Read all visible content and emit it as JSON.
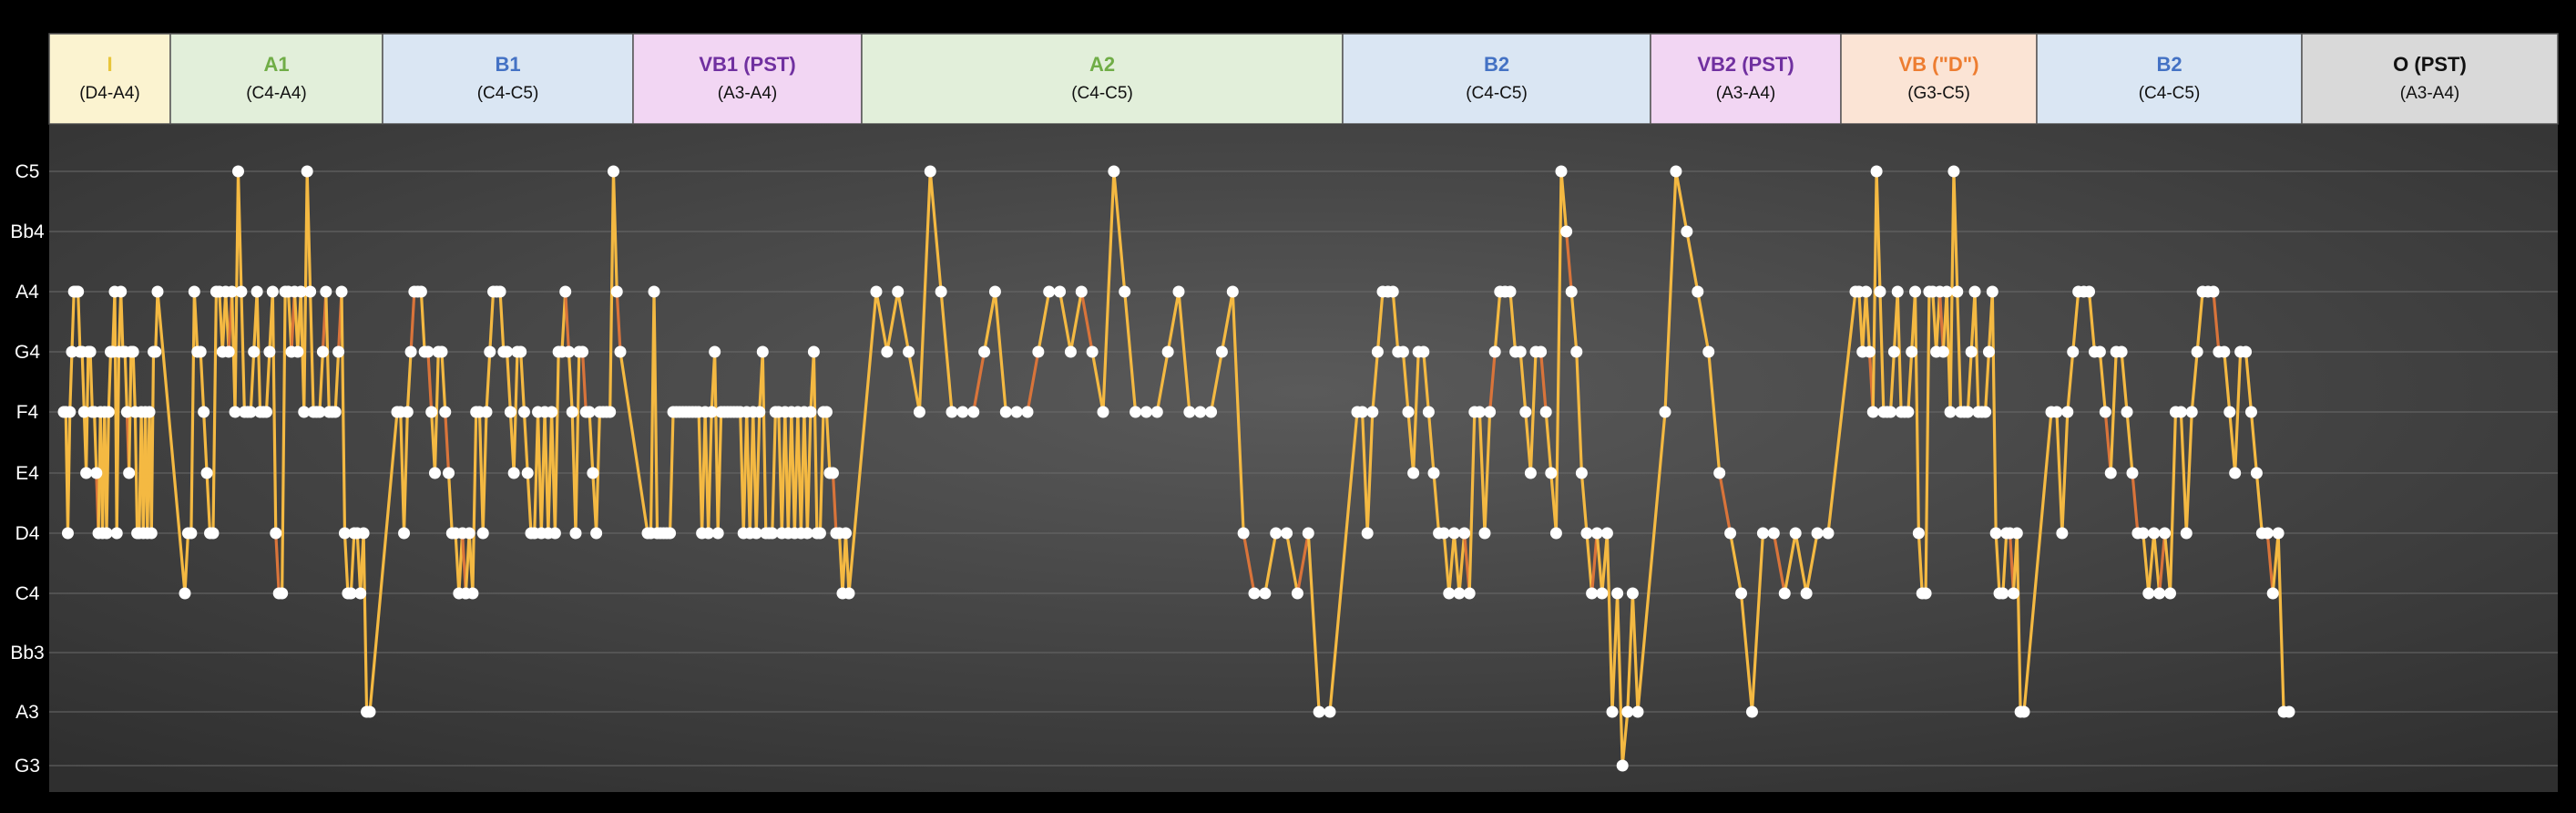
{
  "chart_data": {
    "type": "line",
    "title": "",
    "xlabel": "",
    "ylabel": "",
    "y_ticks": [
      "G3",
      "A3",
      "Bb3",
      "C4",
      "D4",
      "E4",
      "F4",
      "G4",
      "A4",
      "Bb4",
      "C5"
    ],
    "y_grid": true,
    "sections": [
      {
        "label": "I",
        "range": "(D4-A4)",
        "color": "#e8c53a",
        "bg": "#fbf3d0"
      },
      {
        "label": "A1",
        "range": "(C4-A4)",
        "color": "#70ad47",
        "bg": "#e2efda"
      },
      {
        "label": "B1",
        "range": "(C4-C5)",
        "color": "#4472c4",
        "bg": "#dae6f3"
      },
      {
        "label": "VB1 (PST)",
        "range": "(A3-A4)",
        "color": "#7030a0",
        "bg": "#f2d6f3"
      },
      {
        "label": "A2",
        "range": "(C4-C5)",
        "color": "#70ad47",
        "bg": "#e2efda"
      },
      {
        "label": "B2",
        "range": "(C4-C5)",
        "color": "#4472c4",
        "bg": "#dae6f3"
      },
      {
        "label": "VB2 (PST)",
        "range": "(A3-A4)",
        "color": "#7030a0",
        "bg": "#f2d6f3"
      },
      {
        "label": "VB (\"D\")",
        "range": "(G3-C5)",
        "color": "#ed7d31",
        "bg": "#fbe4d5"
      },
      {
        "label": "B2",
        "range": "(C4-C5)",
        "color": "#4472c4",
        "bg": "#dae6f3"
      },
      {
        "label": "O (PST)",
        "range": "(A3-A4)",
        "color": "#111111",
        "bg": "#d9d9d9"
      }
    ],
    "series": [
      {
        "color": "#f4b942",
        "accent_color": "#d9743a",
        "points": [
          [
            "F4",
            "F4",
            "D4",
            "F4",
            "G4",
            "A4",
            "A4",
            "A4",
            "G4",
            "G4",
            "F4",
            "E4",
            "G4",
            "G4",
            "F4",
            "F4",
            "E4",
            "D4",
            "F4",
            "D4",
            "F4",
            "D4",
            "F4",
            "G4",
            "G4",
            "A4",
            "D4",
            "G4",
            "A4",
            "G4",
            "G4",
            "F4",
            "E4",
            "G4",
            "G4",
            "F4",
            "D4",
            "D4",
            "F4",
            "D4",
            "F4",
            "D4",
            "F4",
            "D4",
            "G4",
            "G4",
            "A4"
          ],
          [
            "C4",
            "D4",
            "D4",
            "A4",
            "G4",
            "G4",
            "F4",
            "E4",
            "D4",
            "D4",
            "A4",
            "A4",
            "G4",
            "A4",
            "G4",
            "A4",
            "F4",
            "C5",
            "A4",
            "F4",
            "F4",
            "F4",
            "G4",
            "A4",
            "F4",
            "F4",
            "F4",
            "G4",
            "A4",
            "D4",
            "C4",
            "C4",
            "A4",
            "A4",
            "G4",
            "A4",
            "G4",
            "A4",
            "F4",
            "C5",
            "A4",
            "F4",
            "F4",
            "F4",
            "G4",
            "A4",
            "F4",
            "F4",
            "F4",
            "G4",
            "A4",
            "D4",
            "C4",
            "C4",
            "D4",
            "D4",
            "C4",
            "D4",
            "A3",
            "A3"
          ],
          [
            "F4",
            "F4",
            "D4",
            "F4",
            "G4",
            "A4",
            "A4",
            "A4",
            "G4",
            "G4",
            "F4",
            "E4",
            "G4",
            "G4",
            "F4",
            "E4",
            "D4",
            "D4",
            "C4",
            "D4",
            "C4",
            "D4",
            "C4",
            "F4",
            "F4",
            "D4",
            "F4",
            "G4",
            "A4",
            "A4",
            "A4",
            "G4",
            "G4",
            "F4",
            "E4",
            "G4",
            "G4",
            "F4",
            "E4",
            "D4",
            "D4",
            "F4",
            "D4",
            "F4",
            "D4",
            "F4",
            "D4",
            "G4",
            "G4",
            "A4",
            "G4",
            "F4",
            "D4",
            "G4",
            "G4",
            "F4",
            "F4",
            "E4",
            "D4",
            "F4",
            "F4",
            "F4",
            "F4",
            "C5",
            "A4",
            "G4"
          ],
          [
            "D4",
            "D4",
            "A4",
            "D4",
            "D4",
            "D4",
            "D4",
            "D4",
            "F4",
            "F4",
            "F4",
            "F4",
            "F4",
            "F4",
            "F4",
            "F4",
            "F4",
            "D4",
            "F4",
            "D4",
            "F4",
            "G4",
            "D4",
            "F4",
            "F4",
            "F4",
            "F4",
            "F4",
            "F4",
            "F4",
            "D4",
            "F4",
            "D4",
            "F4",
            "D4",
            "F4",
            "G4",
            "D4",
            "D4",
            "D4",
            "F4",
            "F4",
            "D4",
            "F4",
            "D4",
            "F4",
            "D4",
            "F4",
            "D4",
            "F4",
            "D4",
            "F4",
            "G4",
            "D4",
            "D4",
            "F4",
            "F4",
            "E4",
            "E4",
            "D4",
            "D4",
            "C4",
            "D4",
            "C4"
          ],
          [
            "A4",
            "G4",
            "A4",
            "G4",
            "F4",
            "C5",
            "A4",
            "F4",
            "F4",
            "F4",
            "G4",
            "A4",
            "F4",
            "F4",
            "F4",
            "G4",
            "A4",
            "A4",
            "G4",
            "A4",
            "G4",
            "F4",
            "C5",
            "A4",
            "F4",
            "F4",
            "F4",
            "G4",
            "A4",
            "F4",
            "F4",
            "F4",
            "G4",
            "A4",
            "D4",
            "C4",
            "C4",
            "D4",
            "D4",
            "C4",
            "D4",
            "A3",
            "A3"
          ],
          [
            "F4",
            "F4",
            "D4",
            "F4",
            "G4",
            "A4",
            "A4",
            "A4",
            "G4",
            "G4",
            "F4",
            "E4",
            "G4",
            "G4",
            "F4",
            "E4",
            "D4",
            "D4",
            "C4",
            "D4",
            "C4",
            "D4",
            "C4",
            "F4",
            "F4",
            "D4",
            "F4",
            "G4",
            "A4",
            "A4",
            "A4",
            "G4",
            "G4",
            "F4",
            "E4",
            "G4",
            "G4",
            "F4",
            "E4",
            "D4",
            "C5",
            "Bb4",
            "A4",
            "G4",
            "E4",
            "D4",
            "C4",
            "D4",
            "C4",
            "D4",
            "A3",
            "C4",
            "G3",
            "A3",
            "C4",
            "A3"
          ],
          [
            "F4",
            "C5",
            "Bb4",
            "A4",
            "G4",
            "E4",
            "D4",
            "C4",
            "A3",
            "D4",
            "D4",
            "C4",
            "D4",
            "C4",
            "D4",
            "D4"
          ],
          [
            "A4",
            "A4",
            "G4",
            "A4",
            "G4",
            "F4",
            "C5",
            "A4",
            "F4",
            "F4",
            "F4",
            "G4",
            "A4",
            "F4",
            "F4",
            "F4",
            "G4",
            "A4",
            "D4",
            "C4",
            "C4",
            "A4",
            "A4",
            "G4",
            "A4",
            "G4",
            "A4",
            "F4",
            "C5",
            "A4",
            "F4",
            "F4",
            "F4",
            "G4",
            "A4",
            "F4",
            "F4",
            "F4",
            "G4",
            "A4",
            "D4",
            "C4",
            "C4",
            "D4",
            "D4",
            "C4",
            "D4",
            "A3",
            "A3"
          ],
          [
            "F4",
            "F4",
            "D4",
            "F4",
            "G4",
            "A4",
            "A4",
            "A4",
            "G4",
            "G4",
            "F4",
            "E4",
            "G4",
            "G4",
            "F4",
            "E4",
            "D4",
            "D4",
            "C4",
            "D4",
            "C4",
            "D4",
            "C4",
            "F4",
            "F4",
            "D4",
            "F4",
            "G4",
            "A4",
            "A4",
            "A4",
            "G4",
            "G4",
            "F4",
            "E4",
            "G4",
            "G4",
            "F4",
            "E4",
            "D4",
            "D4",
            "C4",
            "D4",
            "A3",
            "A3"
          ]
        ]
      }
    ]
  }
}
